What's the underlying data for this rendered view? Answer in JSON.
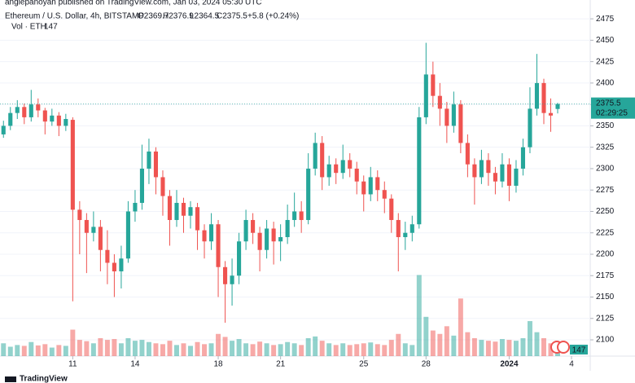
{
  "header": {
    "publisher": "anglepanoyan published on TradingView.com, Jan 03, 2024 05:30 UTC",
    "brand": "TradingView"
  },
  "chart_data": {
    "type": "candlestick",
    "legend": {
      "symbol": "Ethereum / U.S. Dollar, 4h, BITSTAMP",
      "open": "O2369.7",
      "high": "H2376.9",
      "low": "L2364.5",
      "close": "C2375.5",
      "change": "+5.8 (+0.24%)",
      "volume_label": "Vol · ETH"
    },
    "up_color": "#26a69a",
    "down_color": "#ef5350",
    "candles": [
      [
        2340,
        2356,
        2336,
        2350
      ],
      [
        2350,
        2372,
        2345,
        2365
      ],
      [
        2365,
        2380,
        2358,
        2372
      ],
      [
        2372,
        2376,
        2352,
        2360
      ],
      [
        2360,
        2392,
        2355,
        2375
      ],
      [
        2375,
        2382,
        2360,
        2368
      ],
      [
        2368,
        2371,
        2340,
        2355
      ],
      [
        2355,
        2370,
        2350,
        2362
      ],
      [
        2362,
        2366,
        2338,
        2350
      ],
      [
        2350,
        2364,
        2344,
        2358
      ],
      [
        2357,
        2360,
        2145,
        2252
      ],
      [
        2252,
        2262,
        2200,
        2240
      ],
      [
        2240,
        2248,
        2178,
        2225
      ],
      [
        2225,
        2250,
        2215,
        2232
      ],
      [
        2232,
        2240,
        2180,
        2205
      ],
      [
        2205,
        2228,
        2165,
        2190
      ],
      [
        2190,
        2200,
        2150,
        2180
      ],
      [
        2180,
        2210,
        2160,
        2195
      ],
      [
        2195,
        2262,
        2190,
        2250
      ],
      [
        2250,
        2275,
        2238,
        2260
      ],
      [
        2260,
        2328,
        2252,
        2300
      ],
      [
        2300,
        2335,
        2282,
        2320
      ],
      [
        2320,
        2325,
        2270,
        2290
      ],
      [
        2290,
        2298,
        2245,
        2268
      ],
      [
        2268,
        2275,
        2210,
        2240
      ],
      [
        2240,
        2275,
        2232,
        2260
      ],
      [
        2260,
        2266,
        2225,
        2245
      ],
      [
        2245,
        2262,
        2230,
        2255
      ],
      [
        2255,
        2260,
        2205,
        2228
      ],
      [
        2228,
        2235,
        2195,
        2215
      ],
      [
        2215,
        2248,
        2205,
        2235
      ],
      [
        2235,
        2240,
        2150,
        2185
      ],
      [
        2185,
        2192,
        2120,
        2165
      ],
      [
        2165,
        2195,
        2140,
        2175
      ],
      [
        2175,
        2225,
        2165,
        2215
      ],
      [
        2215,
        2252,
        2205,
        2240
      ],
      [
        2240,
        2248,
        2212,
        2225
      ],
      [
        2225,
        2232,
        2180,
        2205
      ],
      [
        2205,
        2240,
        2195,
        2230
      ],
      [
        2230,
        2238,
        2188,
        2215
      ],
      [
        2215,
        2235,
        2192,
        2220
      ],
      [
        2220,
        2258,
        2212,
        2240
      ],
      [
        2240,
        2272,
        2232,
        2250
      ],
      [
        2250,
        2262,
        2225,
        2240
      ],
      [
        2240,
        2318,
        2235,
        2300
      ],
      [
        2300,
        2342,
        2292,
        2330
      ],
      [
        2330,
        2338,
        2275,
        2290
      ],
      [
        2290,
        2315,
        2280,
        2305
      ],
      [
        2305,
        2312,
        2282,
        2295
      ],
      [
        2295,
        2328,
        2288,
        2310
      ],
      [
        2310,
        2318,
        2290,
        2300
      ],
      [
        2300,
        2308,
        2270,
        2285
      ],
      [
        2285,
        2292,
        2250,
        2270
      ],
      [
        2270,
        2302,
        2262,
        2290
      ],
      [
        2290,
        2298,
        2262,
        2275
      ],
      [
        2275,
        2285,
        2248,
        2265
      ],
      [
        2265,
        2270,
        2225,
        2240
      ],
      [
        2240,
        2248,
        2180,
        2220
      ],
      [
        2220,
        2238,
        2205,
        2225
      ],
      [
        2225,
        2245,
        2215,
        2235
      ],
      [
        2235,
        2372,
        2230,
        2360
      ],
      [
        2360,
        2447,
        2352,
        2410
      ],
      [
        2410,
        2425,
        2372,
        2385
      ],
      [
        2385,
        2400,
        2350,
        2370
      ],
      [
        2370,
        2378,
        2330,
        2350
      ],
      [
        2350,
        2390,
        2342,
        2375
      ],
      [
        2375,
        2380,
        2318,
        2330
      ],
      [
        2330,
        2340,
        2290,
        2305
      ],
      [
        2305,
        2312,
        2258,
        2290
      ],
      [
        2290,
        2322,
        2282,
        2310
      ],
      [
        2310,
        2318,
        2280,
        2295
      ],
      [
        2295,
        2302,
        2270,
        2285
      ],
      [
        2285,
        2318,
        2278,
        2305
      ],
      [
        2305,
        2312,
        2262,
        2280
      ],
      [
        2280,
        2310,
        2272,
        2300
      ],
      [
        2300,
        2335,
        2292,
        2325
      ],
      [
        2325,
        2395,
        2318,
        2370
      ],
      [
        2370,
        2434,
        2362,
        2400
      ],
      [
        2400,
        2405,
        2352,
        2365
      ],
      [
        2365,
        2382,
        2343,
        2362
      ],
      [
        2369.7,
        2376.9,
        2364.5,
        2375.5
      ]
    ],
    "volumes": [
      300,
      220,
      260,
      240,
      330,
      250,
      280,
      200,
      260,
      240,
      620,
      380,
      350,
      300,
      420,
      380,
      400,
      300,
      420,
      360,
      380,
      330,
      300,
      280,
      360,
      260,
      300,
      240,
      330,
      280,
      300,
      520,
      450,
      360,
      400,
      300,
      280,
      340,
      300,
      260,
      280,
      330,
      300,
      260,
      420,
      460,
      360,
      300,
      260,
      300,
      260,
      280,
      300,
      320,
      280,
      260,
      380,
      520,
      300,
      260,
      1900,
      920,
      600,
      520,
      700,
      480,
      1350,
      560,
      420,
      380,
      360,
      340,
      400,
      380,
      360,
      420,
      820,
      560,
      420,
      300,
      147
    ],
    "volume_max": 2100,
    "last_price": 2375.5,
    "countdown": "02:29:25",
    "ylim": [
      2081,
      2497
    ],
    "yticks": [
      2100,
      2125,
      2150,
      2175,
      2200,
      2225,
      2250,
      2275,
      2300,
      2325,
      2350,
      2375,
      2400,
      2425,
      2450,
      2475
    ],
    "xlim": [
      -0.5,
      84.7
    ],
    "xticks": [
      {
        "value": 10,
        "label": "11"
      },
      {
        "value": 19,
        "label": "14"
      },
      {
        "value": 31,
        "label": "18"
      },
      {
        "value": 40,
        "label": "21"
      },
      {
        "value": 52,
        "label": "25"
      },
      {
        "value": 61,
        "label": "28"
      },
      {
        "value": 73,
        "label": "2024"
      },
      {
        "value": 82,
        "label": "4"
      }
    ]
  }
}
